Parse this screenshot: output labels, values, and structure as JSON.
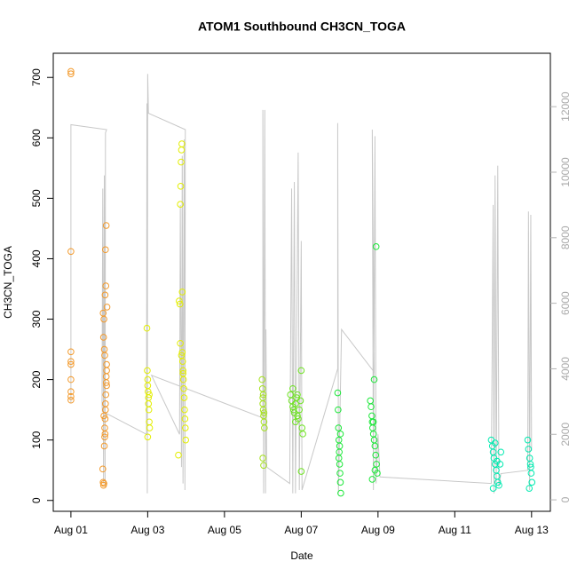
{
  "chart_data": {
    "type": "scatter",
    "title": "ATOM1 Southbound CH3CN_TOGA",
    "xlabel": "Date",
    "ylabel": "CH3CN_TOGA",
    "xlim": [
      0.54,
      13.49
    ],
    "xticks": [
      {
        "value": 1,
        "label": "Aug 01"
      },
      {
        "value": 3,
        "label": "Aug 03"
      },
      {
        "value": 5,
        "label": "Aug 05"
      },
      {
        "value": 7,
        "label": "Aug 07"
      },
      {
        "value": 9,
        "label": "Aug 09"
      },
      {
        "value": 11,
        "label": "Aug 11"
      },
      {
        "value": 13,
        "label": "Aug 13"
      }
    ],
    "ylim": [
      -18,
      740
    ],
    "yticks": [
      0,
      100,
      200,
      300,
      400,
      500,
      600,
      700
    ],
    "y2lim": [
      -350,
      13630
    ],
    "y2ticks": [
      0,
      2000,
      4000,
      6000,
      8000,
      10000,
      12000
    ],
    "y2color": "#b4b4b4",
    "series": [
      {
        "type": "line",
        "axis": "y2",
        "color": "#c8c8c8",
        "x": [
          1.0,
          1.0,
          1.93,
          1.9,
          1.89,
          1.87,
          1.85,
          1.83,
          1.81,
          1.82,
          2.97,
          2.98,
          2.99,
          3.0,
          3.02,
          3.98,
          3.97,
          3.95,
          3.92,
          3.9,
          3.88,
          3.85,
          3.83,
          3.1,
          6.0,
          6.0,
          6.02,
          6.05,
          6.07,
          6.08,
          6.1,
          6.7,
          6.75,
          6.78,
          6.82,
          6.85,
          6.92,
          6.95,
          7.0,
          7.02,
          7.95,
          7.95,
          7.97,
          8.05,
          8.9,
          8.85,
          8.88,
          8.92,
          8.95,
          9.0,
          9.05,
          11.95,
          12.0,
          12.02,
          12.05,
          12.08,
          12.12,
          12.15,
          12.2,
          12.9,
          12.92,
          12.95,
          12.98,
          13.0
        ],
        "values": [
          2950,
          11450,
          11300,
          11200,
          400,
          9900,
          500,
          9500,
          3000,
          2700,
          2000,
          12100,
          200,
          13000,
          11800,
          11300,
          300,
          11000,
          500,
          10500,
          1000,
          9000,
          2000,
          3800,
          2500,
          11900,
          200,
          11900,
          200,
          5200,
          1000,
          500,
          9500,
          200,
          9700,
          200,
          10600,
          300,
          7900,
          300,
          4000,
          11500,
          200,
          5200,
          3900,
          11300,
          300,
          11100,
          500,
          2000,
          700,
          500,
          9000,
          200,
          9900,
          300,
          10200,
          400,
          800,
          900,
          8800,
          300,
          8700,
          1500
        ]
      },
      {
        "color": "#f39a2c",
        "x": [
          1.0,
          1.0,
          1.0,
          1.0,
          1.0,
          1.0,
          1.0,
          1.0,
          1.0,
          1.0,
          1.83,
          1.84,
          1.85,
          1.86,
          1.87,
          1.88,
          1.88,
          1.89,
          1.9,
          1.9,
          1.91,
          1.92,
          1.92,
          1.93,
          1.93,
          1.94,
          1.84,
          1.86,
          1.89,
          1.91,
          1.85,
          1.87,
          1.9,
          1.92,
          1.88,
          1.93,
          1.86,
          1.89
        ],
        "values": [
          710,
          706,
          412,
          246,
          230,
          225,
          200,
          180,
          172,
          166,
          52,
          30,
          25,
          28,
          90,
          105,
          120,
          135,
          150,
          160,
          175,
          195,
          205,
          215,
          225,
          320,
          310,
          300,
          340,
          355,
          270,
          250,
          415,
          455,
          240,
          190,
          140,
          110
        ]
      },
      {
        "color": "#e3ee00",
        "x": [
          2.98,
          2.99,
          3.0,
          3.0,
          3.01,
          3.02,
          3.03,
          3.04,
          3.05,
          3.0,
          3.02,
          3.04,
          3.8,
          3.82,
          3.84,
          3.85,
          3.86,
          3.87,
          3.88,
          3.89,
          3.9,
          3.91,
          3.92,
          3.93,
          3.94,
          3.95,
          3.96,
          3.97,
          3.98,
          3.99,
          3.85,
          3.88,
          3.9,
          3.92
        ],
        "values": [
          285,
          215,
          200,
          190,
          180,
          170,
          150,
          130,
          120,
          105,
          160,
          175,
          75,
          330,
          325,
          490,
          520,
          560,
          580,
          590,
          245,
          230,
          215,
          200,
          185,
          170,
          150,
          135,
          120,
          100,
          260,
          240,
          345,
          210
        ]
      },
      {
        "color": "#a5e21c",
        "x": [
          5.98,
          5.99,
          6.0,
          6.0,
          6.01,
          6.02,
          6.03,
          6.04,
          6.0,
          6.02,
          6.01,
          6.03
        ],
        "values": [
          200,
          185,
          170,
          160,
          150,
          140,
          130,
          120,
          70,
          58,
          175,
          145
        ]
      },
      {
        "color": "#6fe323",
        "x": [
          6.72,
          6.75,
          6.78,
          6.8,
          6.82,
          6.85,
          6.88,
          6.9,
          6.92,
          6.95,
          6.98,
          7.0,
          7.02,
          7.04,
          6.85,
          7.0,
          6.9,
          6.78
        ],
        "values": [
          175,
          165,
          155,
          150,
          145,
          160,
          170,
          140,
          135,
          150,
          165,
          215,
          120,
          110,
          130,
          48,
          175,
          185
        ]
      },
      {
        "color": "#1de83a",
        "x": [
          7.95,
          7.96,
          7.97,
          7.98,
          7.99,
          8.0,
          8.01,
          8.02,
          8.03,
          7.98,
          8.0,
          8.02,
          8.8,
          8.82,
          8.84,
          8.85,
          8.86,
          8.88,
          8.9,
          8.92,
          8.94,
          8.96,
          8.98,
          8.85,
          8.9,
          8.95,
          8.92,
          8.88
        ],
        "values": [
          178,
          150,
          120,
          100,
          80,
          60,
          45,
          30,
          12,
          70,
          90,
          110,
          165,
          155,
          140,
          130,
          120,
          110,
          100,
          90,
          75,
          60,
          45,
          35,
          200,
          420,
          50,
          130
        ]
      },
      {
        "color": "#00eab0",
        "x": [
          11.95,
          11.98,
          12.0,
          12.02,
          12.05,
          12.08,
          12.1,
          12.12,
          12.15,
          12.18,
          12.2,
          12.0,
          12.05,
          12.1,
          12.9,
          12.92,
          12.95,
          12.97,
          12.99,
          13.01,
          12.94,
          12.98
        ],
        "values": [
          100,
          90,
          80,
          70,
          60,
          50,
          40,
          30,
          25,
          60,
          80,
          20,
          95,
          65,
          100,
          85,
          70,
          60,
          45,
          30,
          20,
          55
        ]
      }
    ]
  }
}
